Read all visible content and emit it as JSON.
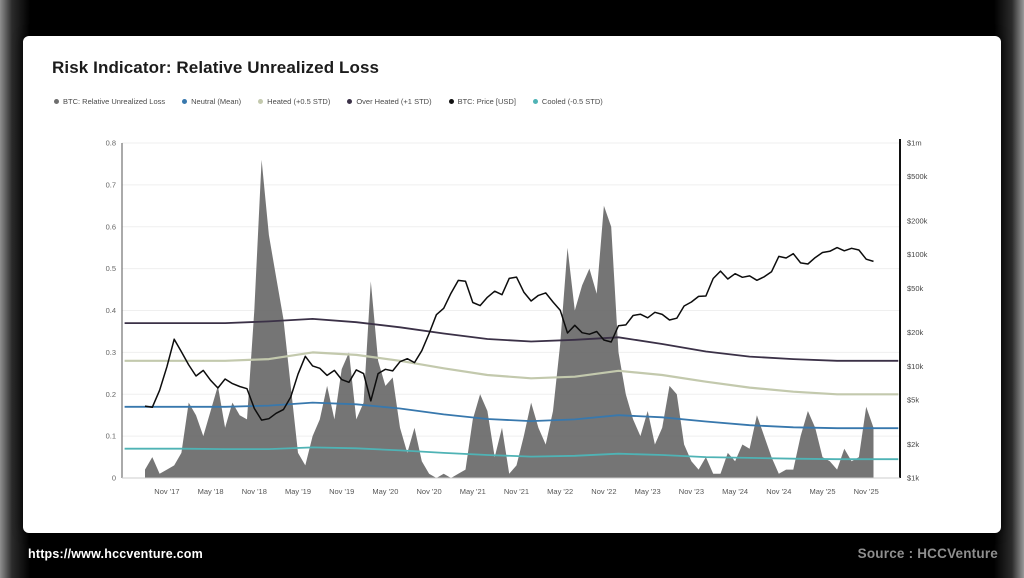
{
  "page": {
    "footer_url": "https://www.hccventure.com",
    "footer_source": "Source : HCCVenture"
  },
  "card": {
    "title": "Risk Indicator: Relative Unrealized Loss"
  },
  "legend": [
    {
      "label": "BTC: Relative Unrealized Loss",
      "color": "#6e6e6e"
    },
    {
      "label": "Neutral (Mean)",
      "color": "#3878ad"
    },
    {
      "label": "Heated (+0.5 STD)",
      "color": "#c3c9ad"
    },
    {
      "label": "Over Heated (+1 STD)",
      "color": "#3b3147"
    },
    {
      "label": "BTC: Price [USD]",
      "color": "#111111"
    },
    {
      "label": "Cooled (-0.5 STD)",
      "color": "#4fb3b5"
    }
  ],
  "chart_data": {
    "type": "area+line",
    "title": "Risk Indicator: Relative Unrealized Loss",
    "x_domain": [
      2017.32,
      2026.22
    ],
    "x_axis": {
      "tick_start": 2017.8333,
      "tick_step": 0.5,
      "tick_labels": [
        "Nov '17",
        "May '18",
        "Nov '18",
        "May '19",
        "Nov '19",
        "May '20",
        "Nov '20",
        "May '21",
        "Nov '21",
        "May '22",
        "Nov '22",
        "May '23",
        "Nov '23",
        "May '24",
        "Nov '24",
        "May '25",
        "Nov '25"
      ]
    },
    "left_axis": {
      "range": [
        0,
        0.8
      ],
      "ticks": [
        0,
        0.1,
        0.2,
        0.3,
        0.4,
        0.5,
        0.6,
        0.7,
        0.8
      ],
      "tick_labels": [
        "0",
        "0.1",
        "0.2",
        "0.3",
        "0.4",
        "0.5",
        "0.6",
        "0.7",
        "0.8"
      ],
      "grid": true
    },
    "right_axis": {
      "scale": "log",
      "range": [
        1000,
        1000000
      ],
      "ticks": [
        1000,
        2000,
        5000,
        10000,
        20000,
        50000,
        100000,
        200000,
        500000,
        1000000
      ],
      "tick_labels": [
        "$1k",
        "$2k",
        "$5k",
        "$10k",
        "$20k",
        "$50k",
        "$100k",
        "$200k",
        "$500k",
        "$1m"
      ]
    },
    "legend_position": "top-left",
    "unrealized_loss": {
      "name": "BTC: Relative Unrealized Loss",
      "style": "area",
      "axis": "left",
      "color": "#696969",
      "x_start": 2017.5833,
      "x_step_years": 0.083333,
      "values": [
        0.02,
        0.05,
        0.01,
        0.02,
        0.03,
        0.06,
        0.18,
        0.15,
        0.1,
        0.16,
        0.22,
        0.12,
        0.18,
        0.15,
        0.14,
        0.4,
        0.76,
        0.58,
        0.48,
        0.38,
        0.22,
        0.06,
        0.03,
        0.1,
        0.14,
        0.22,
        0.14,
        0.26,
        0.3,
        0.14,
        0.18,
        0.47,
        0.28,
        0.22,
        0.24,
        0.12,
        0.06,
        0.12,
        0.04,
        0.01,
        0.0,
        0.01,
        0.0,
        0.01,
        0.02,
        0.14,
        0.2,
        0.16,
        0.05,
        0.12,
        0.01,
        0.03,
        0.1,
        0.18,
        0.12,
        0.08,
        0.16,
        0.32,
        0.55,
        0.4,
        0.46,
        0.5,
        0.44,
        0.65,
        0.6,
        0.3,
        0.2,
        0.14,
        0.1,
        0.16,
        0.08,
        0.12,
        0.22,
        0.2,
        0.08,
        0.04,
        0.02,
        0.05,
        0.01,
        0.01,
        0.06,
        0.04,
        0.08,
        0.07,
        0.15,
        0.1,
        0.05,
        0.01,
        0.02,
        0.02,
        0.1,
        0.16,
        0.12,
        0.05,
        0.04,
        0.02,
        0.07,
        0.04,
        0.05,
        0.17,
        0.12
      ]
    },
    "price": {
      "name": "BTC: Price [USD]",
      "style": "line",
      "axis": "right",
      "color": "#0d0d0d",
      "x_start": 2017.5833,
      "x_step_years": 0.083333,
      "values": [
        4400,
        4300,
        6100,
        9900,
        17500,
        13500,
        10300,
        8200,
        9200,
        7500,
        6400,
        7700,
        7000,
        6600,
        6300,
        4200,
        3300,
        3400,
        3800,
        4100,
        5300,
        8500,
        12300,
        10100,
        9600,
        8300,
        9200,
        7600,
        7200,
        9300,
        8600,
        4900,
        8600,
        9400,
        9100,
        11000,
        11700,
        10800,
        13800,
        19700,
        29000,
        33100,
        45200,
        58800,
        57800,
        37300,
        35000,
        41500,
        47100,
        43800,
        61300,
        63000,
        46200,
        38500,
        43200,
        45500,
        37700,
        31800,
        19900,
        23300,
        20000,
        19400,
        20500,
        17200,
        16500,
        23100,
        23500,
        28500,
        29300,
        27200,
        30500,
        29200,
        26000,
        27000,
        34700,
        37700,
        42300,
        42600,
        61200,
        71300,
        60600,
        67500,
        62700,
        64600,
        59000,
        63300,
        70200,
        96400,
        93400,
        102000,
        84400,
        82500,
        94200,
        104600,
        107100,
        115800,
        108200,
        114000,
        110000,
        91000,
        87000
      ]
    },
    "bands": [
      {
        "name": "Over Heated (+1 STD)",
        "color": "#3b3147",
        "width": 1.8,
        "x": [
          2017.35,
          2018.0,
          2018.5,
          2019.0,
          2019.5,
          2020.0,
          2020.5,
          2021.0,
          2021.5,
          2022.0,
          2022.5,
          2023.0,
          2023.5,
          2024.0,
          2024.5,
          2025.0,
          2025.5,
          2026.2
        ],
        "values": [
          0.37,
          0.37,
          0.37,
          0.374,
          0.38,
          0.372,
          0.36,
          0.345,
          0.332,
          0.326,
          0.33,
          0.336,
          0.32,
          0.302,
          0.29,
          0.284,
          0.28,
          0.28
        ]
      },
      {
        "name": "Heated (+0.5 STD)",
        "color": "#c3c9ad",
        "width": 2.2,
        "x": [
          2017.35,
          2018.0,
          2018.5,
          2019.0,
          2019.5,
          2020.0,
          2020.5,
          2021.0,
          2021.5,
          2022.0,
          2022.5,
          2023.0,
          2023.5,
          2024.0,
          2024.5,
          2025.0,
          2025.5,
          2026.2
        ],
        "values": [
          0.28,
          0.28,
          0.28,
          0.284,
          0.3,
          0.294,
          0.28,
          0.262,
          0.246,
          0.238,
          0.242,
          0.256,
          0.246,
          0.23,
          0.216,
          0.206,
          0.2,
          0.2
        ]
      },
      {
        "name": "Neutral (Mean)",
        "color": "#3878ad",
        "width": 1.8,
        "x": [
          2017.35,
          2018.0,
          2018.5,
          2019.0,
          2019.5,
          2020.0,
          2020.5,
          2021.0,
          2021.5,
          2022.0,
          2022.5,
          2023.0,
          2023.5,
          2024.0,
          2024.5,
          2025.0,
          2025.5,
          2026.2
        ],
        "values": [
          0.17,
          0.17,
          0.17,
          0.173,
          0.18,
          0.176,
          0.166,
          0.152,
          0.141,
          0.136,
          0.14,
          0.15,
          0.145,
          0.135,
          0.126,
          0.121,
          0.119,
          0.119
        ]
      },
      {
        "name": "Cooled (-0.5 STD)",
        "color": "#4fb3b5",
        "width": 1.8,
        "x": [
          2017.35,
          2018.0,
          2018.5,
          2019.0,
          2019.5,
          2020.0,
          2020.5,
          2021.0,
          2021.5,
          2022.0,
          2022.5,
          2023.0,
          2023.5,
          2024.0,
          2024.5,
          2025.0,
          2025.5,
          2026.2
        ],
        "values": [
          0.07,
          0.07,
          0.069,
          0.069,
          0.073,
          0.071,
          0.066,
          0.06,
          0.055,
          0.051,
          0.053,
          0.058,
          0.055,
          0.05,
          0.048,
          0.046,
          0.045,
          0.045
        ]
      }
    ]
  }
}
